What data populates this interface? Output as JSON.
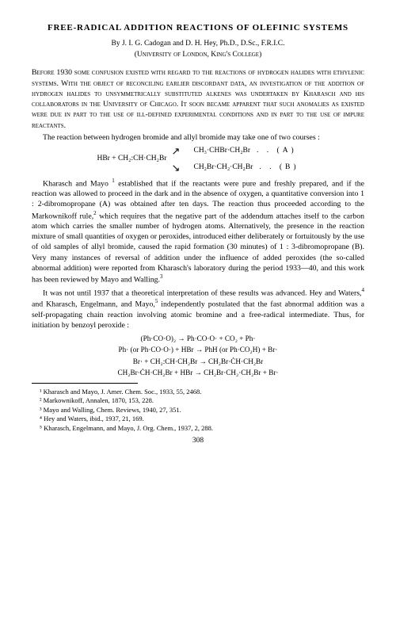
{
  "title": "FREE-RADICAL ADDITION REACTIONS OF OLEFINIC SYSTEMS",
  "authors": "By J. I. G. Cadogan and D. H. Hey, Ph.D., D.Sc., F.R.I.C.",
  "affiliation": "(University of London, King's College)",
  "para1": "Before 1930 some confusion existed with regard to the reactions of hydrogen halides with ethylenic systems. With the object of reconciling earlier discordant data, an investigation of the addition of hydrogen halides to unsymmetrically substituted alkenes was undertaken by Kharasch and his collaborators in the University of Chicago. It soon became apparent that such anomalies as existed were due in part to the use of ill-defined experimental conditions and in part to the use of impure reactants.",
  "para2": "The reaction between hydrogen bromide and allyl bromide may take one of two courses :",
  "scheme": {
    "left": "HBr + CH₂:CH·CH₂Br",
    "productA": "CH₃·CHBr·CH₂Br",
    "labelA": ".  .  (A)",
    "productB": "CH₂Br·CH₂·CH₂Br",
    "labelB": ".  .  (B)"
  },
  "para3a": "Kharasch and Mayo ",
  "para3b": " established that if the reactants were pure and freshly prepared, and if the reaction was allowed to proceed in the dark and in the absence of oxygen, a quantitative conversion into 1 : 2-dibromopropane (A) was obtained after ten days. The reaction thus proceeded according to the Markownikoff rule,",
  "para3c": " which requires that the negative part of the addendum attaches itself to the carbon atom which carries the smaller number of hydrogen atoms. Alternatively, the presence in the reaction mixture of small quantities of oxygen or peroxides, introduced either deliberately or fortuitously by the use of old samples of allyl bromide, caused the rapid formation (30 minutes) of 1 : 3-dibromopropane (B). Very many instances of reversal of addition under the influence of added peroxides (the so-called abnormal addition) were reported from Kharasch's laboratory during the period 1933—40, and this work has been reviewed by Mayo and Walling.",
  "para4a": "It was not until 1937 that a theoretical interpretation of these results was advanced. Hey and Waters,",
  "para4b": " and Kharasch, Engelmann, and Mayo,",
  "para4c": " independently postulated that the fast abnormal addition was a self-propagating chain reaction involving atomic bromine and a free-radical intermediate. Thus, for initiation by benzoyl peroxide :",
  "mech": {
    "l1": "(Ph·CO·O)₂  →  Ph·CO·O· + CO₂ + Ph·",
    "l2": "Ph· (or Ph·CO·O·) + HBr  →  PhH (or Ph·CO₂H) + Br·",
    "l3": "Br· + CH₂:CH·CH₂Br  →  CH₂Br·ĊH·CH₂Br",
    "l4": "CH₂Br·ĊH·CH₂Br + HBr  →  CH₂Br·CH₂·CH₂Br + Br·"
  },
  "footnotes": {
    "f1": "¹ Kharasch and Mayo, J. Amer. Chem. Soc., 1933, 55, 2468.",
    "f2": "² Markownikoff, Annalen, 1870, 153, 228.",
    "f3": "³ Mayo and Walling, Chem. Reviews, 1940, 27, 351.",
    "f4": "⁴ Hey and Waters, ibid., 1937, 21, 169.",
    "f5": "⁵ Kharasch, Engelmann, and Mayo, J. Org. Chem., 1937, 2, 288."
  },
  "pagenum": "308"
}
